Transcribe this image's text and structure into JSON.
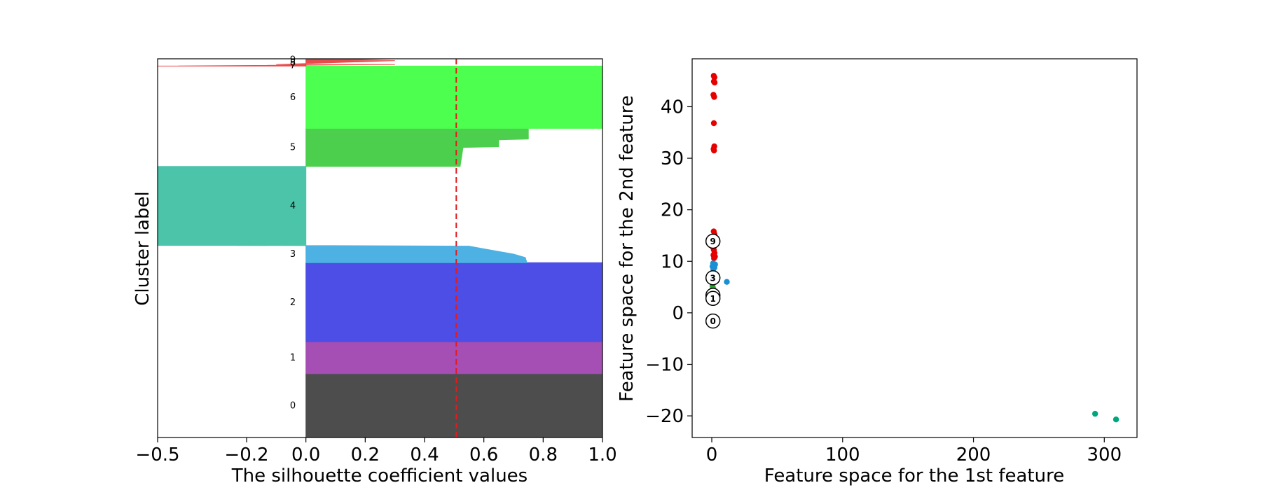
{
  "chart_data": [
    {
      "type": "area",
      "xlabel": "The silhouette coefficient values",
      "ylabel": "Cluster label",
      "xlim": [
        -0.5,
        1.0
      ],
      "xticks": [
        "−0.5",
        "−0.2",
        "0.0",
        "0.2",
        "0.4",
        "0.6",
        "0.8",
        "1.0"
      ],
      "xtick_values": [
        -0.5,
        -0.2,
        0.0,
        0.2,
        0.4,
        0.6,
        0.8,
        1.0
      ],
      "avg_silhouette": 0.507,
      "avg_line_color": "#e41a1c",
      "clusters": [
        {
          "label": "0",
          "color": "#4d4d4d",
          "ystart": 0,
          "yend": 210,
          "shape": [
            [
              0.0,
              1.0
            ],
            [
              1.0,
              1.0
            ]
          ]
        },
        {
          "label": "1",
          "color": "#a54eb3",
          "ystart": 210,
          "yend": 315,
          "shape": [
            [
              0.0,
              1.0
            ],
            [
              1.0,
              1.0
            ]
          ]
        },
        {
          "label": "2",
          "color": "#4c4ee6",
          "ystart": 315,
          "yend": 575,
          "shape": [
            [
              0.0,
              1.0
            ],
            [
              1.0,
              1.0
            ]
          ]
        },
        {
          "label": "3",
          "color": "#4db1e3",
          "ystart": 575,
          "yend": 632,
          "shape": [
            [
              0.0,
              0.745
            ],
            [
              0.3,
              0.74
            ],
            [
              0.5,
              0.7
            ],
            [
              0.8,
              0.6
            ],
            [
              0.96,
              0.55
            ],
            [
              0.99,
              0.0
            ],
            [
              1.0,
              -0.23
            ]
          ]
        },
        {
          "label": "4",
          "color": "#4cc4aa",
          "ystart": 632,
          "yend": 892,
          "shape": [
            [
              0.0,
              -0.5
            ],
            [
              1.0,
              -0.5
            ]
          ]
        },
        {
          "label": "5",
          "color": "#4dcf4e",
          "ystart": 892,
          "yend": 1017,
          "shape": [
            [
              0.0,
              0.52
            ],
            [
              0.5,
              0.53
            ],
            [
              0.52,
              0.65
            ],
            [
              0.7,
              0.65
            ],
            [
              0.72,
              0.75
            ],
            [
              1.0,
              0.75
            ]
          ]
        },
        {
          "label": "6",
          "color": "#4dff4e",
          "ystart": 1017,
          "yend": 1222,
          "shape": [
            [
              0.0,
              1.0
            ],
            [
              1.0,
              1.0
            ]
          ]
        },
        {
          "label": "7",
          "color": "#e74c4c",
          "ystart": 1222,
          "yend": 1227,
          "shape": [
            [
              0.0,
              -0.5
            ],
            [
              1.0,
              0.3
            ]
          ]
        },
        {
          "label": "8",
          "color": "#e74c4c",
          "ystart": 1227,
          "yend": 1240,
          "shape": [
            [
              0.0,
              -0.1
            ],
            [
              1.0,
              0.3
            ]
          ]
        },
        {
          "label": "9",
          "color": "#e74c4c",
          "ystart": 1240,
          "yend": 1246,
          "shape": [
            [
              0.0,
              0.1
            ],
            [
              1.0,
              0.3
            ]
          ]
        }
      ],
      "ylim": [
        0,
        1246
      ]
    },
    {
      "type": "scatter",
      "xlabel": "Feature space for the 1st feature",
      "ylabel": "Feature space for the 2nd feature",
      "xlim": [
        -15,
        325
      ],
      "ylim": [
        -24.2,
        49.3
      ],
      "xticks": [
        "0",
        "100",
        "200",
        "300"
      ],
      "xtick_values": [
        0,
        100,
        200,
        300
      ],
      "yticks": [
        "−20",
        "−10",
        "0",
        "10",
        "20",
        "30",
        "40"
      ],
      "ytick_values": [
        -20,
        -10,
        0,
        10,
        20,
        30,
        40
      ],
      "series": [
        {
          "color": "#e60000",
          "points": [
            [
              1.5,
              46
            ],
            [
              2,
              45.7
            ],
            [
              1.6,
              44.9
            ],
            [
              2.2,
              44.7
            ],
            [
              1.3,
              42.3
            ],
            [
              1.8,
              41.9
            ],
            [
              1.6,
              36.8
            ],
            [
              1.9,
              32.3
            ],
            [
              1.4,
              31.8
            ],
            [
              1.7,
              31.5
            ],
            [
              1.5,
              15.8
            ],
            [
              2,
              15.3
            ],
            [
              1.2,
              14.5
            ],
            [
              2.3,
              13.2
            ],
            [
              1.6,
              12.2
            ],
            [
              2.1,
              11.6
            ],
            [
              1.3,
              11.2
            ],
            [
              2.4,
              10.9
            ],
            [
              1.7,
              10.6
            ],
            [
              1.1,
              12.6
            ]
          ]
        },
        {
          "color": "#1a8fd4",
          "points": [
            [
              1,
              9.6
            ],
            [
              2.5,
              9.4
            ],
            [
              0.6,
              9.0
            ],
            [
              2,
              8.8
            ],
            [
              1.2,
              8.4
            ],
            [
              11.5,
              6.0
            ]
          ]
        },
        {
          "color": "#00a67e",
          "points": [
            [
              293,
              -19.6
            ],
            [
              309,
              -20.7
            ]
          ]
        },
        {
          "color": "#2ca02c",
          "points": [
            [
              0.6,
              5.2
            ],
            [
              0.9,
              4.8
            ]
          ]
        },
        {
          "color": "#333333",
          "points": [
            [
              0.5,
              -1.6
            ],
            [
              0.9,
              -1.9
            ],
            [
              0.4,
              2.6
            ]
          ]
        }
      ],
      "centers": [
        {
          "label": "9",
          "x": 0.9,
          "y": 13.9
        },
        {
          "label": "3",
          "x": 0.9,
          "y": 6.8
        },
        {
          "label": "5",
          "x": 0.9,
          "y": 3.4
        },
        {
          "label": "1",
          "x": 0.9,
          "y": 2.8
        },
        {
          "label": "0",
          "x": 0.9,
          "y": -1.6
        }
      ]
    }
  ]
}
